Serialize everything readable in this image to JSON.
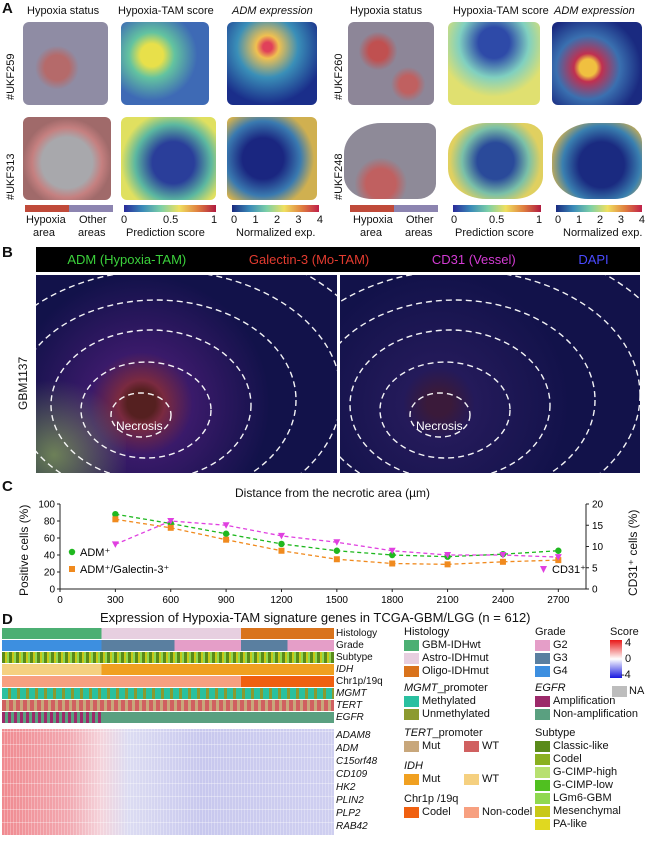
{
  "panels": {
    "a": "A",
    "b": "B",
    "c": "C",
    "d": "D"
  },
  "a": {
    "col_titles_left": [
      "Hypoxia status",
      "Hypoxia-TAM score",
      "ADM expression"
    ],
    "col_titles_right": [
      "Hypoxia status",
      "Hypoxia-TAM score",
      "ADM expression"
    ],
    "samples": [
      "#UKF259",
      "#UKF313",
      "#UKF260",
      "#UKF248"
    ],
    "hypoxia_legend": {
      "area1": "Hypoxia",
      "area2": "area",
      "other1": "Other",
      "other2": "areas"
    },
    "score_ticks": [
      "0",
      "0.5",
      "1"
    ],
    "score_title": "Prediction score",
    "exp_ticks": [
      "0",
      "1",
      "2",
      "3",
      "4"
    ],
    "exp_title": "Normalized exp."
  },
  "b": {
    "header": [
      {
        "text": "ADM (Hypoxia-TAM)",
        "color": "#3bd13b"
      },
      {
        "text": "Galectin-3 (Mo-TAM)",
        "color": "#e33b2f"
      },
      {
        "text": "CD31 (Vessel)",
        "color": "#d43bd4"
      },
      {
        "text": "DAPI",
        "color": "#4a4aff"
      }
    ],
    "sample": "GBM1137",
    "necrosis": "Necrosis"
  },
  "chart_data": {
    "type": "line",
    "title": "Distance from the necrotic area (µm)",
    "x": [
      300,
      600,
      900,
      1200,
      1500,
      1800,
      2100,
      2400,
      2700
    ],
    "xlim": [
      0,
      2850
    ],
    "ylabel": "Positive cells (%)",
    "ylim": [
      0,
      100
    ],
    "y2label": "CD31⁺ cells (%)",
    "y2lim": [
      0,
      20
    ],
    "xticks": [
      "0",
      "300",
      "600",
      "900",
      "1200",
      "1500",
      "1800",
      "2100",
      "2400",
      "2700"
    ],
    "yticks": [
      "0",
      "20",
      "40",
      "60",
      "80",
      "100"
    ],
    "y2ticks": [
      "0",
      "5",
      "10",
      "15",
      "20"
    ],
    "series": [
      {
        "name": "ADM⁺",
        "axis": "left",
        "color": "#1fb81f",
        "marker": "circle",
        "values": [
          88,
          77,
          65,
          53,
          45,
          40,
          38,
          41,
          45
        ]
      },
      {
        "name": "ADM⁺/Galectin-3⁺",
        "axis": "left",
        "color": "#f08a1e",
        "marker": "square",
        "values": [
          82,
          72,
          58,
          45,
          35,
          30,
          29,
          32,
          34
        ]
      },
      {
        "name": "CD31⁺",
        "axis": "right",
        "color": "#e040e0",
        "marker": "triangle",
        "values": [
          10.5,
          16,
          15,
          12.5,
          11,
          9,
          8,
          8,
          7.5
        ]
      }
    ]
  },
  "d": {
    "title": "Expression of Hypoxia-TAM signature genes in TCGA-GBM/LGG (n = 612)",
    "track_labels": [
      {
        "text": "Histology",
        "italic": false
      },
      {
        "text": "Grade",
        "italic": false
      },
      {
        "text": "Subtype",
        "italic": false
      },
      {
        "text": "IDH",
        "italic": true
      },
      {
        "text": "Chr1p/19q",
        "italic": false
      },
      {
        "text": "MGMT",
        "italic": true
      },
      {
        "text": "TERT",
        "italic": true
      },
      {
        "text": "EGFR",
        "italic": true
      }
    ],
    "genes": [
      "ADAM8",
      "ADM",
      "C15orf48",
      "CD109",
      "HK2",
      "PLIN2",
      "PLP2",
      "RAB42"
    ],
    "legend": {
      "histology_title": "Histology",
      "histology": [
        {
          "t": "GBM-IDHwt",
          "c": "#4caf73"
        },
        {
          "t": "Astro-IDHmut",
          "c": "#e7cfe0"
        },
        {
          "t": "Oligo-IDHmut",
          "c": "#d9731c"
        }
      ],
      "mgmt_title_i": "MGMT",
      "mgmt_title_r": "_promoter",
      "mgmt": [
        {
          "t": "Methylated",
          "c": "#2ac0a0"
        },
        {
          "t": "Unmethylated",
          "c": "#8c9a30"
        }
      ],
      "tert_title_i": "TERT",
      "tert_title_r": "_promoter",
      "tert": [
        {
          "t": "Mut",
          "c": "#c8a77b"
        },
        {
          "t": "WT",
          "c": "#d06060"
        }
      ],
      "idh_title": "IDH",
      "idh": [
        {
          "t": "Mut",
          "c": "#f0a020"
        },
        {
          "t": "WT",
          "c": "#f5d080"
        }
      ],
      "chr_title": "Chr1p /19q",
      "chr": [
        {
          "t": "Codel",
          "c": "#f06010"
        },
        {
          "t": "Non-codel",
          "c": "#f7a080"
        }
      ],
      "grade_title": "Grade",
      "grade": [
        {
          "t": "G2",
          "c": "#e59ec8"
        },
        {
          "t": "G3",
          "c": "#5a7fa0"
        },
        {
          "t": "G4",
          "c": "#3d8fe0"
        }
      ],
      "score_title": "Score",
      "score_ticks": [
        "4",
        "0",
        "-4"
      ],
      "na": "NA",
      "egfr_title": "EGFR",
      "egfr": [
        {
          "t": "Amplification",
          "c": "#9c2a6a"
        },
        {
          "t": "Non-amplification",
          "c": "#5aa080"
        }
      ],
      "subtype_title": "Subtype",
      "subtype": [
        {
          "t": "Classic-like",
          "c": "#5a8a1a"
        },
        {
          "t": "Codel",
          "c": "#8ab020"
        },
        {
          "t": "G-CIMP-high",
          "c": "#b8e070"
        },
        {
          "t": "G-CIMP-low",
          "c": "#50c020"
        },
        {
          "t": "LGm6-GBM",
          "c": "#90d850"
        },
        {
          "t": "Mesenchymal",
          "c": "#c8c818"
        },
        {
          "t": "PA-like",
          "c": "#e0d820"
        }
      ]
    }
  }
}
